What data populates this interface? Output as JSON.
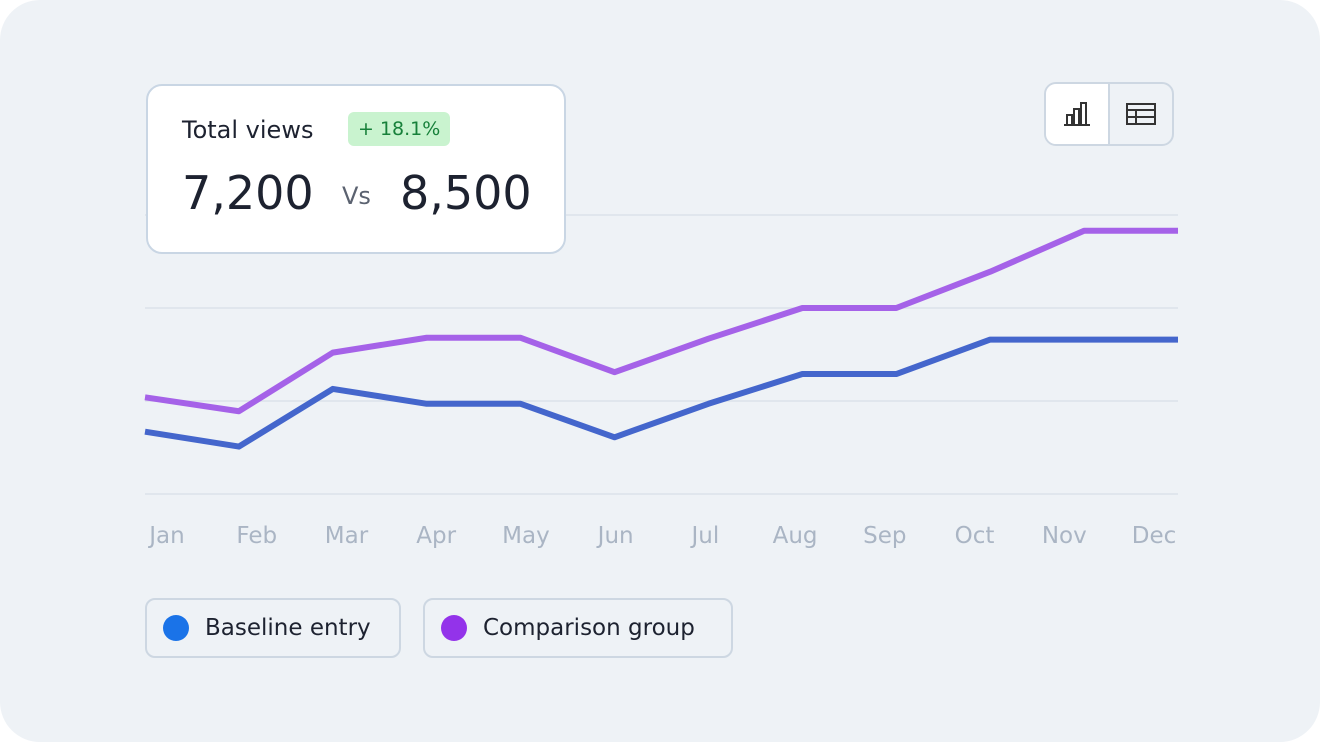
{
  "chart_data": {
    "type": "line",
    "card": {
      "title": "Total views",
      "change": "+ 18.1%",
      "value_a": "7,200",
      "vs": "Vs",
      "value_b": "8,500"
    },
    "categories": [
      "Jan",
      "Feb",
      "Mar",
      "Apr",
      "May",
      "Jun",
      "Jul",
      "Aug",
      "Sep",
      "Oct",
      "Nov",
      "Dec"
    ],
    "series": [
      {
        "name": "Baseline entry",
        "color": "#4466cc",
        "values": [
          0.67,
          0.51,
          1.13,
          0.97,
          0.97,
          0.61,
          0.97,
          1.29,
          1.29,
          1.66,
          1.66,
          1.66
        ]
      },
      {
        "name": "Comparison group",
        "color": "#a562e8",
        "values": [
          1.04,
          0.89,
          1.52,
          1.68,
          1.68,
          1.31,
          1.67,
          2.0,
          2.0,
          2.39,
          2.83,
          2.83
        ]
      }
    ],
    "ylim": [
      0,
      3
    ],
    "yticks": [
      0,
      1,
      2,
      3
    ],
    "grid": true
  }
}
